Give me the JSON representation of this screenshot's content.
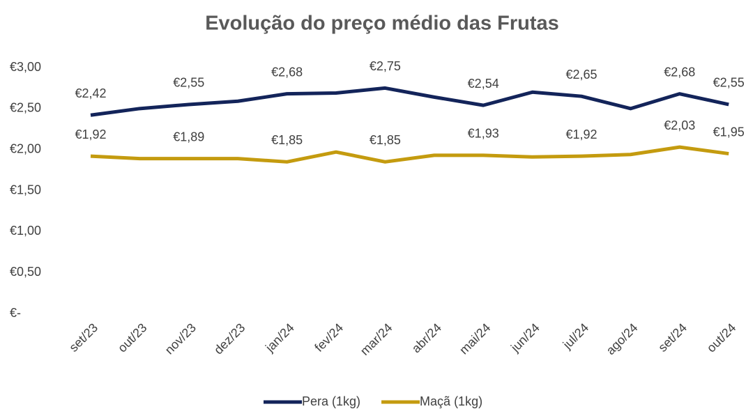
{
  "chart_data": {
    "type": "line",
    "title": "Evolução do preço médio das Frutas",
    "categories": [
      "set/23",
      "out/23",
      "nov/23",
      "dez/23",
      "jan/24",
      "fev/24",
      "mar/24",
      "abr/24",
      "mai/24",
      "jun/24",
      "jul/24",
      "ago/24",
      "set/24",
      "out/24"
    ],
    "series": [
      {
        "name": "Pera (1kg)",
        "color": "#13245a",
        "values": [
          2.42,
          2.5,
          2.55,
          2.59,
          2.68,
          2.69,
          2.75,
          2.64,
          2.54,
          2.7,
          2.65,
          2.5,
          2.68,
          2.55
        ],
        "value_labels": [
          "€2,42",
          null,
          "€2,55",
          null,
          "€2,68",
          null,
          "€2,75",
          null,
          "€2,54",
          null,
          "€2,65",
          null,
          "€2,68",
          "€2,55"
        ]
      },
      {
        "name": "Maçã (1kg)",
        "color": "#c49b0f",
        "values": [
          1.92,
          1.89,
          1.89,
          1.89,
          1.85,
          1.97,
          1.85,
          1.93,
          1.93,
          1.91,
          1.92,
          1.94,
          2.03,
          1.95
        ],
        "value_labels": [
          "€1,92",
          null,
          "€1,89",
          null,
          "€1,85",
          null,
          "€1,85",
          null,
          "€1,93",
          null,
          "€1,92",
          null,
          "€2,03",
          "€1,95"
        ]
      }
    ],
    "ylim": [
      0,
      3
    ],
    "yticks": [
      {
        "value": 0,
        "label": "€-"
      },
      {
        "value": 0.5,
        "label": "€0,50"
      },
      {
        "value": 1,
        "label": "€1,00"
      },
      {
        "value": 1.5,
        "label": "€1,50"
      },
      {
        "value": 2,
        "label": "€2,00"
      },
      {
        "value": 2.5,
        "label": "€2,50"
      },
      {
        "value": 3,
        "label": "€3,00"
      }
    ],
    "grid": false,
    "legend": "bottom"
  }
}
